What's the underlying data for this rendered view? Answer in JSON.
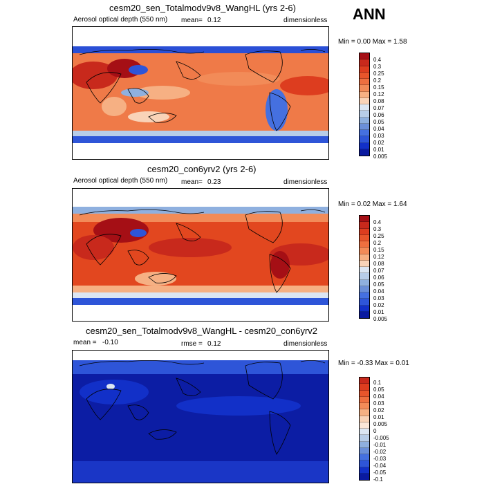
{
  "header": {
    "season": "ANN"
  },
  "panels": [
    {
      "title": "cesm20_sen_Totalmodv9v8_WangHL (yrs 2-6)",
      "left_label": "Aerosol optical depth (550 nm)",
      "stat_label": "mean=",
      "stat_value": "0.12",
      "units": "dimensionless",
      "minmax": "Min =  0.00 Max =  1.58",
      "levels": [
        "0.4",
        "0.3",
        "0.25",
        "0.2",
        "0.15",
        "0.12",
        "0.08",
        "0.07",
        "0.06",
        "0.05",
        "0.04",
        "0.03",
        "0.02",
        "0.01",
        "0.005"
      ],
      "colors": [
        "#a50f15",
        "#c8291c",
        "#dd3d1f",
        "#e8552b",
        "#ee6f3f",
        "#f28b58",
        "#f6b083",
        "#f9d3b8",
        "#dce6f3",
        "#b8cde8",
        "#8fb0df",
        "#6b8fd9",
        "#4570e0",
        "#2e55d8",
        "#1230c8",
        "#0a1aa0"
      ],
      "bg_color": "#ef7a48"
    },
    {
      "title": "cesm20_con6yrv2 (yrs 2-6)",
      "left_label": "Aerosol optical depth (550 nm)",
      "stat_label": "mean=",
      "stat_value": "0.23",
      "units": "dimensionless",
      "minmax": "Min =  0.02 Max =  1.64",
      "levels": [
        "0.4",
        "0.3",
        "0.25",
        "0.2",
        "0.15",
        "0.12",
        "0.08",
        "0.07",
        "0.06",
        "0.05",
        "0.04",
        "0.03",
        "0.02",
        "0.01",
        "0.005"
      ],
      "colors": [
        "#a50f15",
        "#c8291c",
        "#dd3d1f",
        "#e8552b",
        "#ee6f3f",
        "#f28b58",
        "#f6b083",
        "#f9d3b8",
        "#dce6f3",
        "#b8cde8",
        "#8fb0df",
        "#6b8fd9",
        "#4570e0",
        "#2e55d8",
        "#1230c8",
        "#0a1aa0"
      ],
      "bg_color": "#e2471f"
    },
    {
      "title": "cesm20_sen_Totalmodv9v8_WangHL - cesm20_con6yrv2",
      "left_label": "",
      "stat_label": "mean =",
      "stat_value": "-0.10",
      "rmse_label": "rmse =",
      "rmse_value": "0.12",
      "units": "dimensionless",
      "minmax": "Min = -0.33 Max =  0.01",
      "levels": [
        "0.1",
        "0.05",
        "0.04",
        "0.03",
        "0.02",
        "0.01",
        "0.005",
        "0",
        "-0.005",
        "-0.01",
        "-0.02",
        "-0.03",
        "-0.04",
        "-0.05",
        "-0.1"
      ],
      "colors": [
        "#c8291c",
        "#dd3d1f",
        "#e8552b",
        "#ee6f3f",
        "#f28b58",
        "#f6b083",
        "#f9d3b8",
        "#fbe6d8",
        "#dce6f3",
        "#b8cde8",
        "#8fb0df",
        "#6b8fd9",
        "#4570e0",
        "#2e55d8",
        "#1230c8",
        "#0a1aa0"
      ],
      "bg_color": "#0c1da4"
    }
  ]
}
